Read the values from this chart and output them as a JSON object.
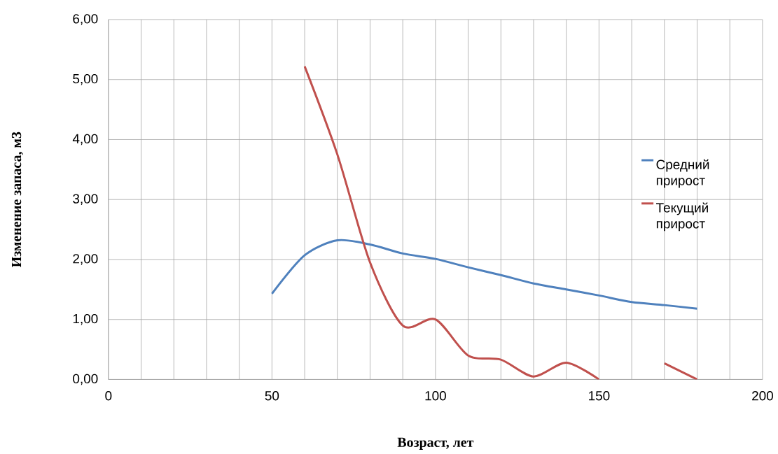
{
  "chart_data": {
    "type": "line",
    "xlabel": "Возраст, лет",
    "ylabel": "Изменение запаса, м3",
    "x": [
      50,
      60,
      70,
      80,
      90,
      100,
      110,
      120,
      130,
      140,
      150,
      160,
      170,
      180
    ],
    "series": [
      {
        "name": "Средний прирост",
        "color": "#4f81bd",
        "values": [
          1.43,
          2.07,
          2.32,
          2.25,
          2.1,
          2.01,
          1.87,
          1.74,
          1.6,
          1.5,
          1.4,
          1.29,
          1.24,
          1.18
        ]
      },
      {
        "name": "Текущий прирост",
        "color": "#c0504d",
        "values": [
          null,
          5.22,
          3.75,
          1.95,
          0.9,
          1.0,
          0.4,
          0.33,
          0.05,
          0.28,
          0.0,
          null,
          0.27,
          0.0
        ]
      }
    ],
    "xlim": [
      0,
      200
    ],
    "xticks": [
      0,
      {
        "value": 10,
        "label": null
      },
      {
        "value": 20,
        "label": null
      },
      {
        "value": 30,
        "label": null
      },
      {
        "value": 40,
        "label": null
      },
      50,
      {
        "value": 60,
        "label": null
      },
      {
        "value": 70,
        "label": null
      },
      {
        "value": 80,
        "label": null
      },
      {
        "value": 90,
        "label": null
      },
      100,
      {
        "value": 110,
        "label": null
      },
      {
        "value": 120,
        "label": null
      },
      {
        "value": 130,
        "label": null
      },
      {
        "value": 140,
        "label": null
      },
      150,
      {
        "value": 160,
        "label": null
      },
      {
        "value": 170,
        "label": null
      },
      {
        "value": 180,
        "label": null
      },
      {
        "value": 190,
        "label": null
      },
      200
    ],
    "ylim": [
      0,
      6
    ],
    "yticks": [
      {
        "value": 0,
        "label": "0,00"
      },
      {
        "value": 1,
        "label": "1,00"
      },
      {
        "value": 2,
        "label": "2,00"
      },
      {
        "value": 3,
        "label": "3,00"
      },
      {
        "value": 4,
        "label": "4,00"
      },
      {
        "value": 5,
        "label": "5,00"
      },
      {
        "value": 6,
        "label": "6,00"
      }
    ],
    "grid": true,
    "legend": "right",
    "marker": "none",
    "line_style": "solid"
  }
}
